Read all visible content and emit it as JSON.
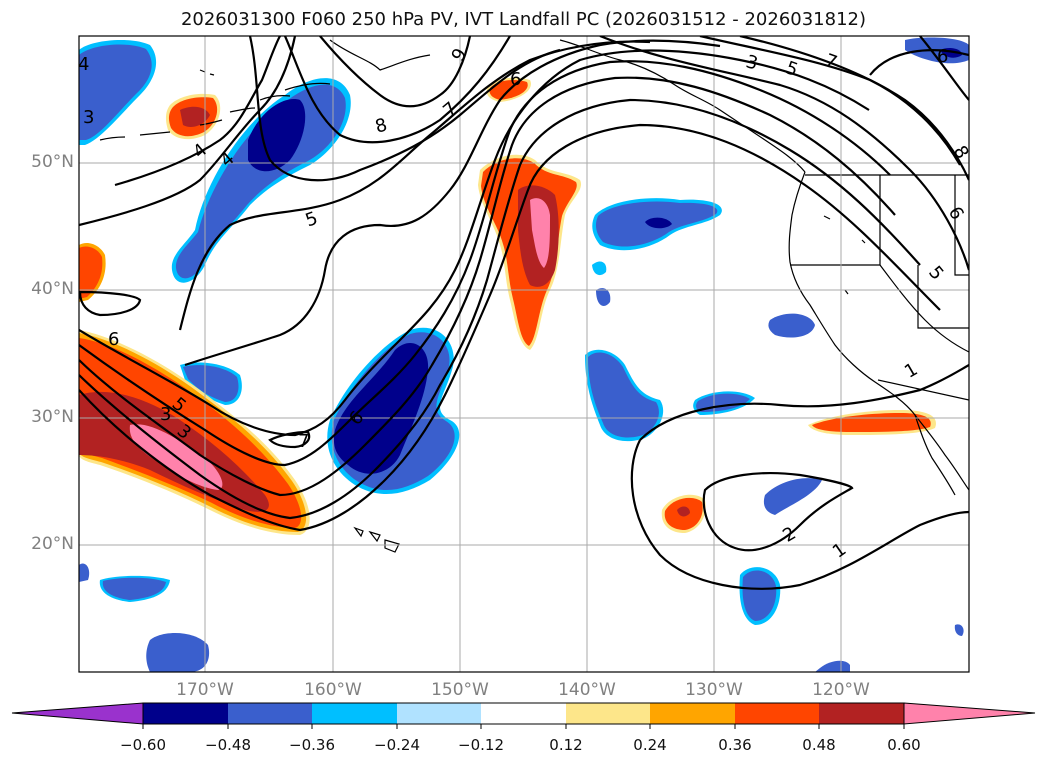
{
  "title": "2026031300 F060 250 hPa PV, IVT Landfall PC (2026031512 - 2026031812)",
  "lat_labels": [
    "50°N",
    "40°N",
    "30°N",
    "20°N"
  ],
  "lon_labels": [
    "170°W",
    "160°W",
    "150°W",
    "140°W",
    "130°W",
    "120°W"
  ],
  "colorbar": {
    "ticks": [
      "−0.60",
      "−0.48",
      "−0.36",
      "−0.24",
      "−0.12",
      "0.12",
      "0.24",
      "0.36",
      "0.48",
      "0.60"
    ],
    "colors": [
      "#9a32cd",
      "#00008b",
      "#3a5fcd",
      "#00bfff",
      "#b0e2ff",
      "#ffffff",
      "#fde68a",
      "#ffa500",
      "#ff4500",
      "#b22222",
      "#ff82ab"
    ]
  },
  "contour_labels": [
    "9",
    "6",
    "8",
    "7",
    "4",
    "5",
    "3",
    "5",
    "4",
    "3",
    "6",
    "5",
    "3",
    "7",
    "6",
    "7",
    "6",
    "8",
    "1",
    "2",
    "1",
    "6",
    "5",
    "4",
    "3"
  ]
}
